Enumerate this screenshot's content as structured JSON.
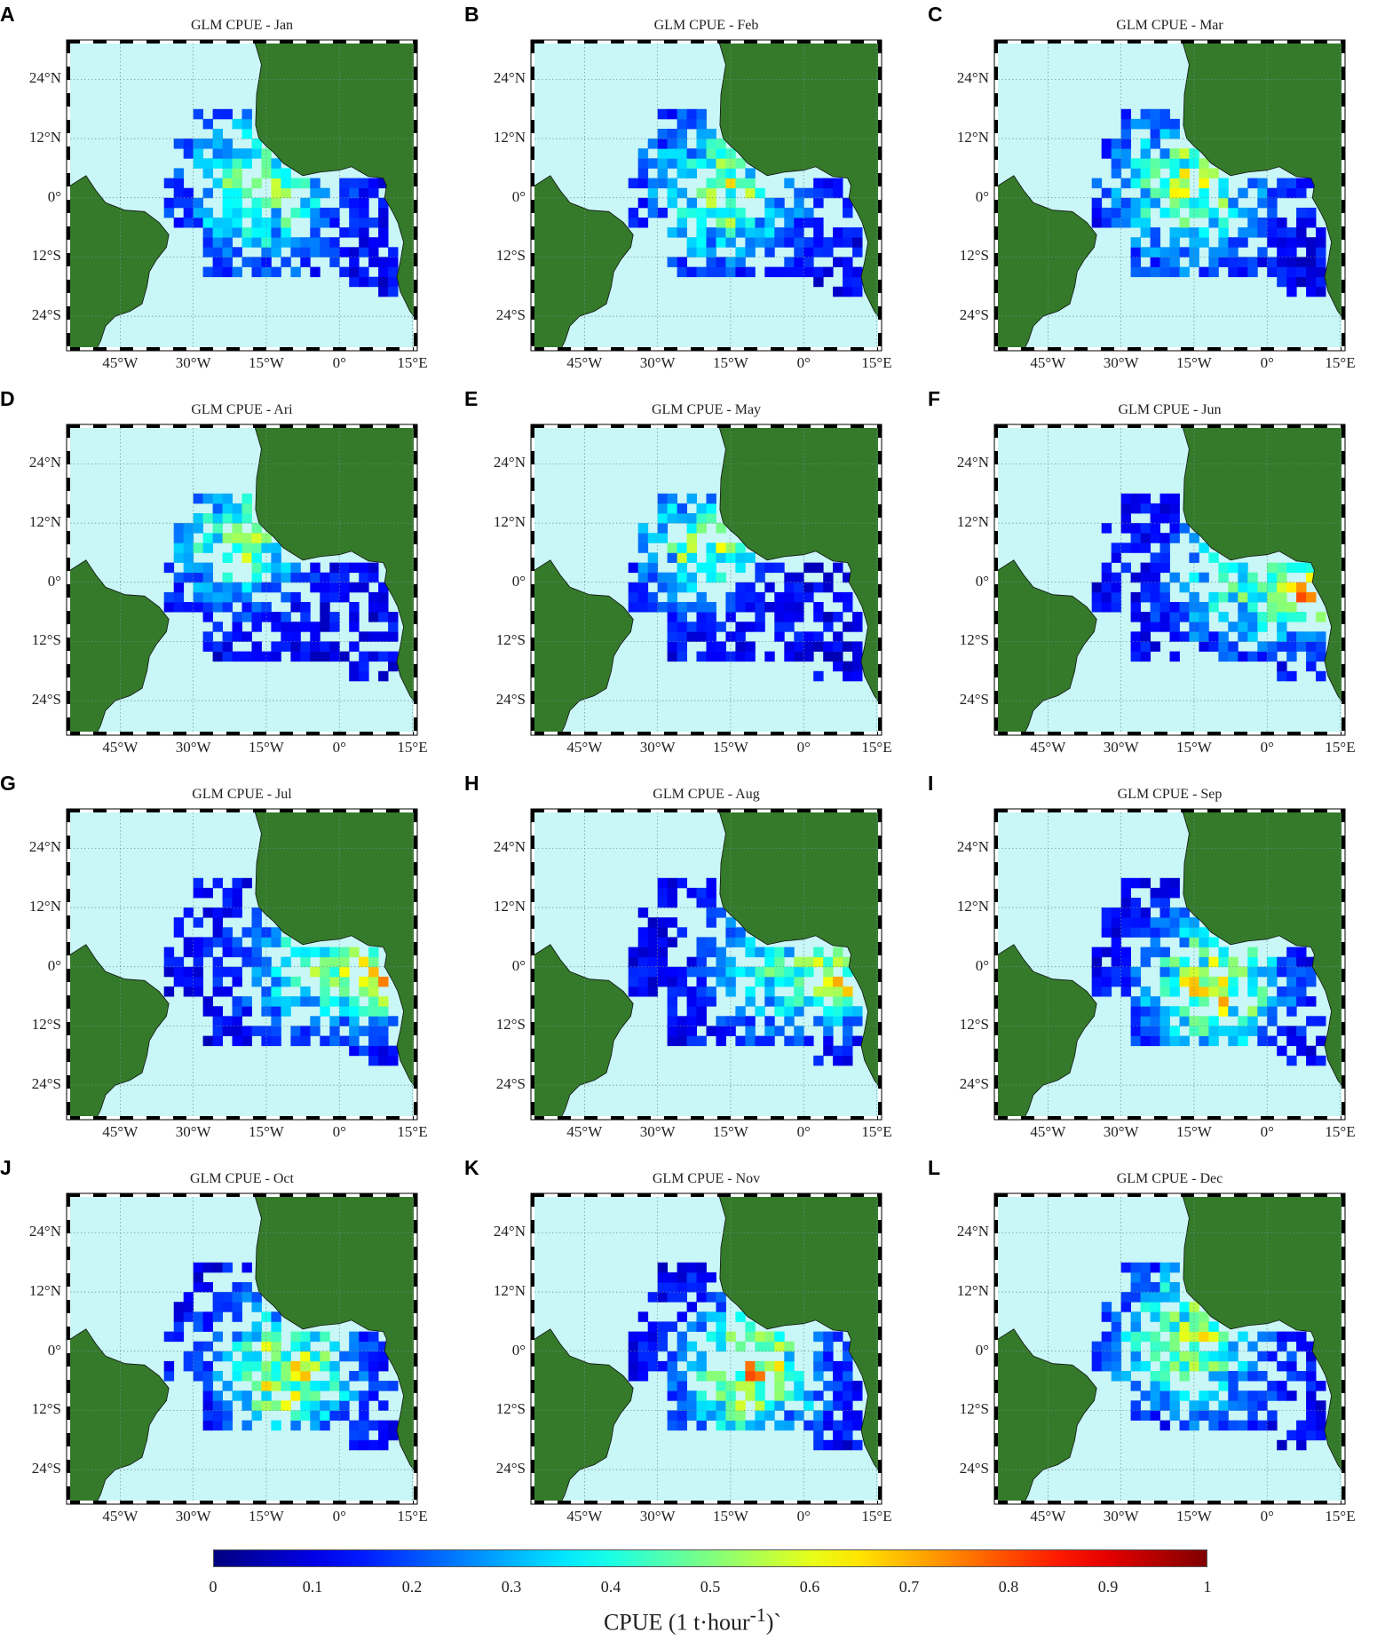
{
  "map": {
    "lon_range": [
      -56,
      16
    ],
    "lat_range": [
      -31,
      32
    ],
    "lon_ticks": [
      "45°W",
      "30°W",
      "15°W",
      "0°",
      "15°E"
    ],
    "lon_tick_values": [
      -45,
      -30,
      -15,
      0,
      15
    ],
    "lat_ticks": [
      "24°N",
      "12°N",
      "0°",
      "12°S",
      "24°S"
    ],
    "lat_tick_values": [
      24,
      12,
      0,
      -12,
      -24
    ],
    "colors": {
      "ocean": "#c9f6f6",
      "land": "#347a2a",
      "grid": "#6e8f8f",
      "frame": "#000000"
    }
  },
  "panels": [
    {
      "letter": "A",
      "title": "GLM CPUE - Jan",
      "hot": "equatorial"
    },
    {
      "letter": "B",
      "title": "GLM CPUE - Feb",
      "hot": "equatorial"
    },
    {
      "letter": "C",
      "title": "GLM CPUE - Mar",
      "hot": "equatorial"
    },
    {
      "letter": "D",
      "title": "GLM CPUE - Ari",
      "hot": "senegal"
    },
    {
      "letter": "E",
      "title": "GLM CPUE - May",
      "hot": "senegal"
    },
    {
      "letter": "F",
      "title": "GLM CPUE - Jun",
      "hot": "gulf"
    },
    {
      "letter": "G",
      "title": "GLM CPUE - Jul",
      "hot": "gulf"
    },
    {
      "letter": "H",
      "title": "GLM CPUE - Aug",
      "hot": "gulf"
    },
    {
      "letter": "I",
      "title": "GLM CPUE - Sep",
      "hot": "south-equatorial"
    },
    {
      "letter": "J",
      "title": "GLM CPUE - Oct",
      "hot": "south-equatorial"
    },
    {
      "letter": "K",
      "title": "GLM CPUE - Nov",
      "hot": "south-equatorial"
    },
    {
      "letter": "L",
      "title": "GLM CPUE - Dec",
      "hot": "equatorial"
    }
  ],
  "colorbar": {
    "colormap": "jet",
    "range": [
      0,
      1
    ],
    "ticks": [
      "0",
      "0.1",
      "0.2",
      "0.3",
      "0.4",
      "0.5",
      "0.6",
      "0.7",
      "0.8",
      "0.9",
      "1"
    ],
    "label": "CPUE (1 t·hour",
    "label_sup": "-1",
    "label_suffix": ")`"
  }
}
